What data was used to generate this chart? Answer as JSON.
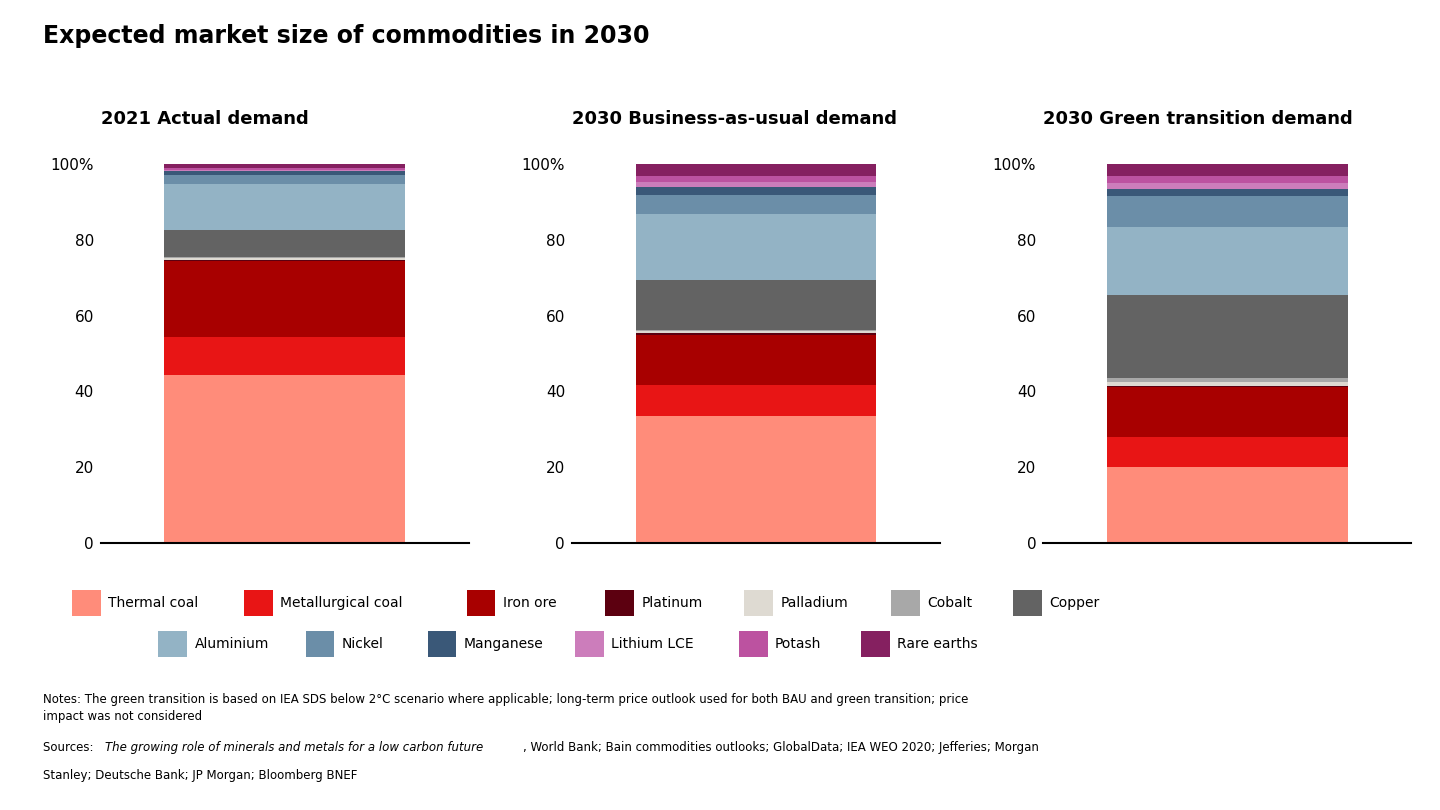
{
  "title": "Expected market size of commodities in 2030",
  "chart_titles": [
    "2021 Actual demand",
    "2030 Business-as-usual demand",
    "2030 Green transition demand"
  ],
  "categories": [
    "Thermal coal",
    "Metallurgical coal",
    "Iron ore",
    "Platinum",
    "Palladium",
    "Cobalt",
    "Copper",
    "Aluminium",
    "Nickel",
    "Manganese",
    "Lithium LCE",
    "Potash",
    "Rare earths"
  ],
  "colors": [
    "#FF8C7A",
    "#E81515",
    "#A80000",
    "#5C0010",
    "#DEDAD2",
    "#A8A8A8",
    "#636363",
    "#93B3C5",
    "#6B8EA8",
    "#3A5878",
    "#CC7DBB",
    "#BC52A0",
    "#852060"
  ],
  "data_2021": [
    44,
    10,
    20,
    0.4,
    0.4,
    0.4,
    7,
    12,
    2.5,
    1.0,
    0.4,
    0.4,
    1.0
  ],
  "data_bau": [
    33,
    8,
    13,
    0.4,
    0.4,
    0.4,
    13,
    17,
    5.0,
    2.0,
    1.5,
    1.5,
    3.0
  ],
  "data_green": [
    20,
    8,
    13,
    0.4,
    1.0,
    1.0,
    22,
    18,
    8.0,
    2.0,
    1.5,
    2.0,
    3.0
  ],
  "notes_line1": "Notes: The green transition is based on IEA SDS below 2°C scenario where applicable; long-term price outlook used for both BAU and green transition; price",
  "notes_line2": "impact was not considered",
  "sources_prefix": "Sources: ",
  "sources_italic": "The growing role of minerals and metals for a low carbon future",
  "sources_suffix": ", World Bank; Bain commodities outlooks; GlobalData; IEA WEO 2020; Jefferies; Morgan",
  "sources_line2": "Stanley; Deutsche Bank; JP Morgan; Bloomberg BNEF",
  "bg": "#FFFFFF",
  "legend_row1": [
    [
      "Thermal coal",
      "#FF8C7A"
    ],
    [
      "Metallurgical coal",
      "#E81515"
    ],
    [
      "Iron ore",
      "#A80000"
    ],
    [
      "Platinum",
      "#5C0010"
    ],
    [
      "Palladium",
      "#DEDAD2"
    ],
    [
      "Cobalt",
      "#A8A8A8"
    ],
    [
      "Copper",
      "#636363"
    ]
  ],
  "legend_row2": [
    [
      "Aluminium",
      "#93B3C5"
    ],
    [
      "Nickel",
      "#6B8EA8"
    ],
    [
      "Manganese",
      "#3A5878"
    ],
    [
      "Lithium LCE",
      "#CC7DBB"
    ],
    [
      "Potash",
      "#BC52A0"
    ],
    [
      "Rare earths",
      "#852060"
    ]
  ]
}
